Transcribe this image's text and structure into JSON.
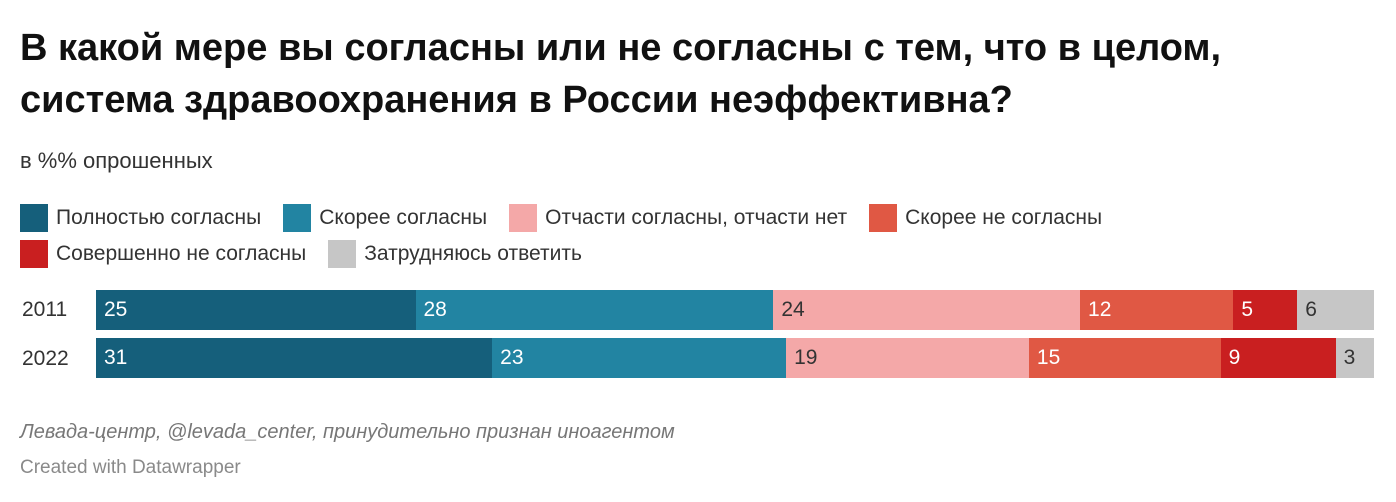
{
  "header": {
    "title": "В какой мере вы согласны или не согласны с тем, что в целом, система здравоохранения в России неэффективна?",
    "subtitle": "в %% опрошенных"
  },
  "footer": {
    "source": "Левада-центр, @levada_center, принудительно признан иноагентом",
    "credit": "Created with Datawrapper"
  },
  "chart_data": {
    "type": "bar",
    "stacked": true,
    "orientation": "horizontal",
    "title": "В какой мере вы согласны или не согласны с тем, что в целом, система здравоохранения в России неэффективна?",
    "subtitle": "в %% опрошенных",
    "categories": [
      "2011",
      "2022"
    ],
    "xlim": [
      0,
      100
    ],
    "legend_position": "top",
    "series": [
      {
        "name": "Полностью согласны",
        "color": "#155f7b",
        "text_color": "#ffffff",
        "values": [
          25,
          31
        ]
      },
      {
        "name": "Скорее согласны",
        "color": "#2284a2",
        "text_color": "#ffffff",
        "values": [
          28,
          23
        ]
      },
      {
        "name": "Отчасти согласны, отчасти нет",
        "color": "#f4a8a8",
        "text_color": "#333333",
        "values": [
          24,
          19
        ]
      },
      {
        "name": "Скорее не согласны",
        "color": "#e05844",
        "text_color": "#ffffff",
        "values": [
          12,
          15
        ]
      },
      {
        "name": "Совершенно не согласны",
        "color": "#c91f20",
        "text_color": "#ffffff",
        "values": [
          5,
          9
        ]
      },
      {
        "name": "Затрудняюсь ответить",
        "color": "#c6c6c6",
        "text_color": "#333333",
        "values": [
          6,
          3
        ]
      }
    ]
  }
}
